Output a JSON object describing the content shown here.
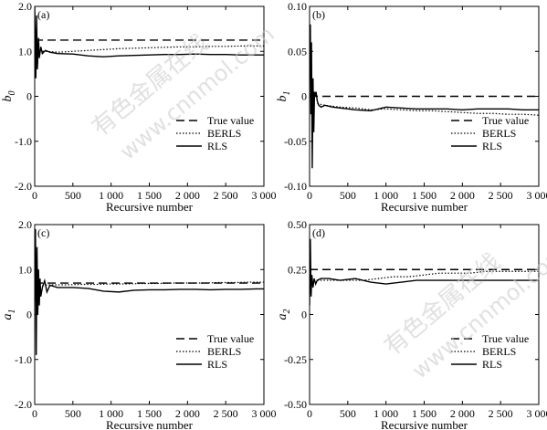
{
  "chart_data": [
    {
      "type": "line",
      "panel_label": "(a)",
      "xlabel": "Recursive number",
      "ylabel": "b",
      "ylabel_sub": "0",
      "xlim": [
        0,
        3000
      ],
      "ylim": [
        -2.0,
        2.0
      ],
      "xticks": [
        0,
        500,
        1000,
        1500,
        2000,
        2500,
        3000
      ],
      "xtick_labels": [
        "0",
        "500",
        "1 000",
        "1 500",
        "2 000",
        "2 500",
        "3 000"
      ],
      "yticks": [
        -2.0,
        -1.0,
        0,
        1.0,
        2.0
      ],
      "ytick_labels": [
        "-2.0",
        "-1.0",
        "0",
        "1.0",
        "2.0"
      ],
      "legend_position": "lower-right",
      "series": [
        {
          "name": "True value",
          "style": "dashed",
          "x": [
            0,
            3000
          ],
          "y": [
            1.25,
            1.25
          ]
        },
        {
          "name": "BERLS",
          "style": "dotted",
          "x": [
            60,
            150,
            300,
            500,
            700,
            900,
            1100,
            1300,
            1500,
            1700,
            1900,
            2100,
            2300,
            2500,
            2700,
            2900,
            3000
          ],
          "y": [
            1.0,
            1.0,
            0.98,
            1.0,
            1.02,
            1.04,
            1.06,
            1.07,
            1.08,
            1.09,
            1.1,
            1.1,
            1.11,
            1.11,
            1.12,
            1.12,
            1.12
          ]
        },
        {
          "name": "RLS",
          "style": "solid",
          "x": [
            0,
            15,
            25,
            35,
            50,
            60,
            80,
            100,
            140,
            200,
            300,
            500,
            700,
            900,
            1100,
            1300,
            1500,
            1700,
            1900,
            2100,
            2300,
            2500,
            2700,
            2900,
            3000
          ],
          "y": [
            2.0,
            0.4,
            1.8,
            0.6,
            1.3,
            0.85,
            1.1,
            0.95,
            1.02,
            0.98,
            0.95,
            0.94,
            0.9,
            0.88,
            0.9,
            0.91,
            0.92,
            0.93,
            0.93,
            0.94,
            0.93,
            0.93,
            0.92,
            0.92,
            0.92
          ]
        }
      ]
    },
    {
      "type": "line",
      "panel_label": "(b)",
      "xlabel": "Recursive number",
      "ylabel": "b",
      "ylabel_sub": "1",
      "xlim": [
        0,
        3000
      ],
      "ylim": [
        -0.1,
        0.1
      ],
      "xticks": [
        0,
        500,
        1000,
        1500,
        2000,
        2500,
        3000
      ],
      "xtick_labels": [
        "0",
        "500",
        "1 000",
        "1 500",
        "2 000",
        "2 500",
        "3 000"
      ],
      "yticks": [
        -0.1,
        -0.05,
        0,
        0.05,
        0.1
      ],
      "ytick_labels": [
        "-0.10",
        "-0.05",
        "0",
        "0.05",
        "0.10"
      ],
      "legend_position": "lower-right",
      "series": [
        {
          "name": "True value",
          "style": "dashed",
          "x": [
            0,
            3000
          ],
          "y": [
            0,
            0
          ]
        },
        {
          "name": "BERLS",
          "style": "dotted",
          "x": [
            100,
            200,
            400,
            600,
            800,
            1000,
            1200,
            1400,
            1600,
            1800,
            2000,
            2200,
            2400,
            2600,
            2800,
            3000
          ],
          "y": [
            -0.008,
            -0.01,
            -0.012,
            -0.013,
            -0.015,
            -0.014,
            -0.015,
            -0.016,
            -0.016,
            -0.017,
            -0.018,
            -0.019,
            -0.019,
            -0.02,
            -0.02,
            -0.021
          ]
        },
        {
          "name": "RLS",
          "style": "solid",
          "x": [
            0,
            10,
            18,
            25,
            35,
            45,
            55,
            65,
            75,
            85,
            100,
            120,
            150,
            200,
            300,
            400,
            600,
            800,
            1000,
            1200,
            1400,
            1600,
            1800,
            2000,
            2200,
            2400,
            2600,
            2800,
            3000
          ],
          "y": [
            0.02,
            0.08,
            -0.02,
            0.06,
            -0.08,
            0.02,
            -0.04,
            0.005,
            0.0,
            0.005,
            -0.005,
            -0.01,
            -0.012,
            -0.01,
            -0.012,
            -0.013,
            -0.015,
            -0.016,
            -0.012,
            -0.013,
            -0.014,
            -0.014,
            -0.014,
            -0.015,
            -0.014,
            -0.014,
            -0.014,
            -0.015,
            -0.015
          ]
        }
      ]
    },
    {
      "type": "line",
      "panel_label": "(c)",
      "xlabel": "Recursive number",
      "ylabel": "a",
      "ylabel_sub": "1",
      "xlim": [
        0,
        3000
      ],
      "ylim": [
        -2.0,
        2.0
      ],
      "xticks": [
        0,
        500,
        1000,
        1500,
        2000,
        2500,
        3000
      ],
      "xtick_labels": [
        "0",
        "500",
        "1 000",
        "1 500",
        "2 000",
        "2 500",
        "3 000"
      ],
      "yticks": [
        -2.0,
        -1.0,
        0,
        1.0,
        2.0
      ],
      "ytick_labels": [
        "-2.0",
        "-1.0",
        "0",
        "1.0",
        "2.0"
      ],
      "legend_position": "lower-right",
      "series": [
        {
          "name": "True value",
          "style": "dashed",
          "x": [
            0,
            3000
          ],
          "y": [
            0.7,
            0.7
          ]
        },
        {
          "name": "BERLS",
          "style": "dotted",
          "x": [
            100,
            200,
            400,
            600,
            800,
            1000,
            1200,
            1400,
            1600,
            1800,
            2000,
            2200,
            2400,
            2600,
            2800,
            3000
          ],
          "y": [
            0.65,
            0.66,
            0.66,
            0.67,
            0.67,
            0.68,
            0.68,
            0.69,
            0.69,
            0.7,
            0.7,
            0.7,
            0.71,
            0.71,
            0.72,
            0.72
          ]
        },
        {
          "name": "RLS",
          "style": "solid",
          "x": [
            0,
            10,
            20,
            30,
            40,
            50,
            60,
            70,
            80,
            100,
            130,
            160,
            200,
            300,
            500,
            700,
            900,
            1100,
            1300,
            1500,
            1700,
            1900,
            2100,
            2300,
            2500,
            2700,
            2900,
            3000
          ],
          "y": [
            0.3,
            1.9,
            -0.9,
            1.5,
            0.0,
            1.0,
            0.2,
            0.8,
            0.4,
            0.6,
            0.75,
            0.5,
            0.65,
            0.6,
            0.6,
            0.58,
            0.52,
            0.5,
            0.54,
            0.55,
            0.55,
            0.56,
            0.56,
            0.55,
            0.56,
            0.56,
            0.57,
            0.57
          ]
        }
      ]
    },
    {
      "type": "line",
      "panel_label": "(d)",
      "xlabel": "Recursive number",
      "ylabel": "a",
      "ylabel_sub": "2",
      "xlim": [
        0,
        3000
      ],
      "ylim": [
        -0.5,
        0.5
      ],
      "xticks": [
        0,
        500,
        1000,
        1500,
        2000,
        2500,
        3000
      ],
      "xtick_labels": [
        "0",
        "500",
        "1 000",
        "1 500",
        "2 000",
        "2 500",
        "3 000"
      ],
      "yticks": [
        -0.5,
        -0.25,
        0,
        0.25,
        0.5
      ],
      "ytick_labels": [
        "-0.50",
        "-0.25",
        "0",
        "0.25",
        "0.50"
      ],
      "legend_position": "lower-right",
      "series": [
        {
          "name": "True value",
          "style": "dashed",
          "x": [
            0,
            3000
          ],
          "y": [
            0.25,
            0.25
          ]
        },
        {
          "name": "BERLS",
          "style": "dotted",
          "x": [
            100,
            300,
            500,
            700,
            900,
            1100,
            1300,
            1500,
            1700,
            1900,
            2100,
            2300,
            2500,
            2700,
            2900,
            3000
          ],
          "y": [
            0.19,
            0.19,
            0.19,
            0.19,
            0.2,
            0.21,
            0.21,
            0.22,
            0.23,
            0.23,
            0.23,
            0.24,
            0.24,
            0.24,
            0.24,
            0.24
          ]
        },
        {
          "name": "RLS",
          "style": "solid",
          "x": [
            0,
            10,
            20,
            30,
            45,
            60,
            80,
            100,
            150,
            250,
            400,
            600,
            800,
            1000,
            1200,
            1400,
            1600,
            1800,
            2000,
            2200,
            2400,
            2600,
            2800,
            3000
          ],
          "y": [
            0.05,
            0.42,
            0.1,
            0.22,
            0.15,
            0.2,
            0.17,
            0.19,
            0.2,
            0.2,
            0.19,
            0.2,
            0.18,
            0.17,
            0.18,
            0.19,
            0.19,
            0.19,
            0.19,
            0.19,
            0.19,
            0.19,
            0.19,
            0.19
          ]
        }
      ]
    }
  ],
  "watermark": {
    "line1": "有色金属在线",
    "line2": "www.cnnmol.com"
  }
}
